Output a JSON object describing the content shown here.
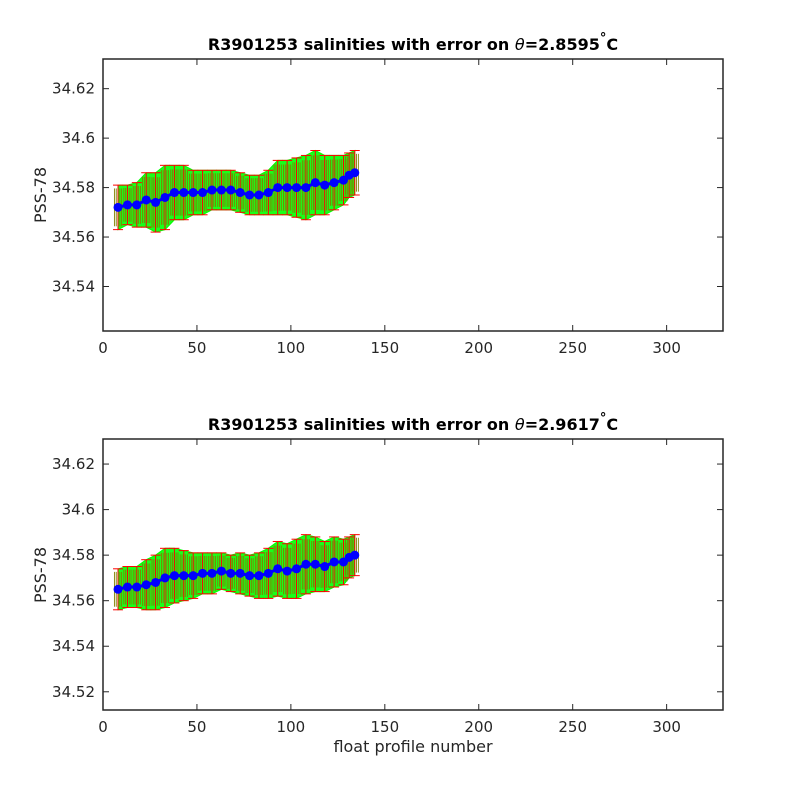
{
  "chart_data": [
    {
      "type": "scatter",
      "title_prefix": "R3901253 salinities with error on ",
      "title_theta": "θ",
      "title_value": "=2.8595",
      "title_deg": "°",
      "title_unit": "C",
      "xlabel": "",
      "ylabel": "PSS-78",
      "xlim": [
        0,
        330
      ],
      "ylim": [
        34.522,
        34.632
      ],
      "xticks": [
        0,
        50,
        100,
        150,
        200,
        250,
        300
      ],
      "yticks": [
        34.54,
        34.56,
        34.58,
        34.6,
        34.62
      ],
      "ytick_labels": [
        "34.54",
        "34.56",
        "34.58",
        "34.6",
        "34.62"
      ],
      "grid": false,
      "series": [
        {
          "kind": "salinity_with_error",
          "x": [
            8,
            13,
            18,
            23,
            28,
            33,
            38,
            43,
            48,
            53,
            58,
            63,
            68,
            73,
            78,
            83,
            88,
            93,
            98,
            103,
            108,
            113,
            118,
            123,
            128,
            131,
            134
          ],
          "y": [
            34.572,
            34.573,
            34.573,
            34.575,
            34.574,
            34.576,
            34.578,
            34.578,
            34.578,
            34.578,
            34.579,
            34.579,
            34.579,
            34.578,
            34.577,
            34.577,
            34.578,
            34.58,
            34.58,
            34.58,
            34.58,
            34.582,
            34.581,
            34.582,
            34.583,
            34.585,
            34.586
          ],
          "err": [
            0.009,
            0.008,
            0.009,
            0.011,
            0.012,
            0.013,
            0.011,
            0.011,
            0.009,
            0.009,
            0.008,
            0.008,
            0.008,
            0.008,
            0.008,
            0.008,
            0.009,
            0.011,
            0.011,
            0.012,
            0.013,
            0.013,
            0.012,
            0.011,
            0.01,
            0.009,
            0.009
          ],
          "color": "#0000ff",
          "error_color": "#ff0000",
          "band_color": "#00ff00",
          "band_fill": "#808000"
        }
      ]
    },
    {
      "type": "scatter",
      "title_prefix": "R3901253 salinities with error on ",
      "title_theta": "θ",
      "title_value": "=2.9617",
      "title_deg": "°",
      "title_unit": "C",
      "xlabel": "float profile number",
      "ylabel": "PSS-78",
      "xlim": [
        0,
        330
      ],
      "ylim": [
        34.512,
        34.631
      ],
      "xticks": [
        0,
        50,
        100,
        150,
        200,
        250,
        300
      ],
      "yticks": [
        34.52,
        34.54,
        34.56,
        34.58,
        34.6,
        34.62
      ],
      "ytick_labels": [
        "34.52",
        "34.54",
        "34.56",
        "34.58",
        "34.6",
        "34.62"
      ],
      "grid": false,
      "series": [
        {
          "kind": "salinity_with_error",
          "x": [
            8,
            13,
            18,
            23,
            28,
            33,
            38,
            43,
            48,
            53,
            58,
            63,
            68,
            73,
            78,
            83,
            88,
            93,
            98,
            103,
            108,
            113,
            118,
            123,
            128,
            131,
            134
          ],
          "y": [
            34.565,
            34.566,
            34.566,
            34.567,
            34.568,
            34.57,
            34.571,
            34.571,
            34.571,
            34.572,
            34.572,
            34.573,
            34.572,
            34.572,
            34.571,
            34.571,
            34.572,
            34.574,
            34.573,
            34.574,
            34.576,
            34.576,
            34.575,
            34.577,
            34.577,
            34.579,
            34.58
          ],
          "err": [
            0.009,
            0.009,
            0.009,
            0.011,
            0.012,
            0.013,
            0.012,
            0.011,
            0.01,
            0.009,
            0.009,
            0.008,
            0.008,
            0.009,
            0.009,
            0.01,
            0.011,
            0.012,
            0.012,
            0.013,
            0.013,
            0.012,
            0.011,
            0.011,
            0.01,
            0.009,
            0.009
          ],
          "color": "#0000ff",
          "error_color": "#ff0000",
          "band_color": "#00ff00",
          "band_fill": "#808000"
        }
      ]
    }
  ]
}
